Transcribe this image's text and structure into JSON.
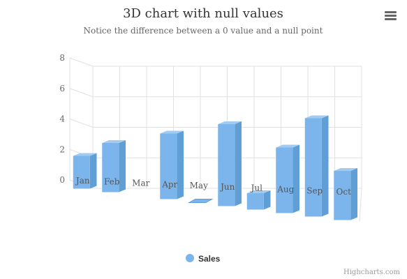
{
  "chart_data": {
    "type": "bar",
    "title": "3D chart with null values",
    "subtitle": "Notice the difference between a 0 value and a null point",
    "categories": [
      "Jan",
      "Feb",
      "Mar",
      "Apr",
      "May",
      "Jun",
      "Jul",
      "Aug",
      "Sep",
      "Oct"
    ],
    "series": [
      {
        "name": "Sales",
        "values": [
          2,
          3,
          null,
          4,
          0,
          5,
          1,
          4,
          6,
          3
        ]
      }
    ],
    "ylim": [
      0,
      8
    ],
    "yticks": [
      "0",
      "2",
      "4",
      "6",
      "8"
    ],
    "grid": true,
    "legend_position": "bottom-center",
    "colors": {
      "bar_front": "#7cb5ec",
      "bar_side": "#5f9fd6",
      "bar_top": "#a2cbf2",
      "grid": "#e0e0e0"
    }
  },
  "credits": "Highcharts.com",
  "menu_icon": "hamburger-menu-icon"
}
